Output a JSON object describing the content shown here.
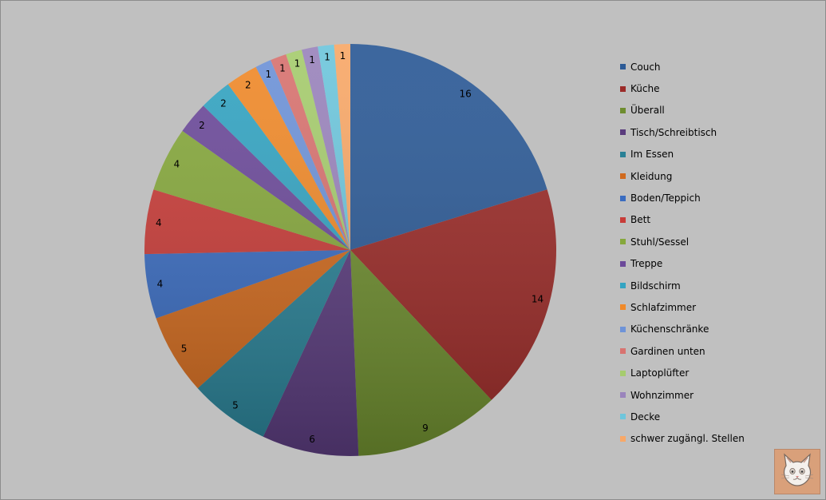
{
  "chart_data": {
    "type": "pie",
    "title": "",
    "categories": [
      "Couch",
      "Küche",
      "Überall",
      "Tisch/Schreibtisch",
      "Im Essen",
      "Kleidung",
      "Boden/Teppich",
      "Bett",
      "Stuhl/Sessel",
      "Treppe",
      "Bildschirm",
      "Schlafzimmer",
      "Küchenschränke",
      "Gardinen unten",
      "Laptoplüfter",
      "Wohnzimmer",
      "Decke",
      "schwer zugängl. Stellen"
    ],
    "values": [
      16,
      14,
      9,
      6,
      5,
      5,
      4,
      4,
      4,
      2,
      2,
      2,
      1,
      1,
      1,
      1,
      1,
      1
    ],
    "value_labels": [
      "16",
      "14",
      "9",
      "6",
      "5",
      "5",
      "4",
      "4",
      "4",
      "2",
      "2",
      "2",
      "1",
      "1",
      "1",
      "1",
      "1",
      "1"
    ],
    "colors": [
      "#2c5a96",
      "#9b2b28",
      "#6e8d2f",
      "#5a3c7d",
      "#2a8196",
      "#d06a1e",
      "#3a6cc0",
      "#c83c38",
      "#86a83c",
      "#6c4a9a",
      "#34a4c2",
      "#f08a2a",
      "#6e93d8",
      "#d87370",
      "#a6cc6e",
      "#9a84bc",
      "#6ec6dc",
      "#f8a868"
    ],
    "start_angle_deg": 0,
    "direction": "clockwise",
    "legend_position": "right",
    "background_color": "#c0c0c0"
  },
  "logo": {
    "name": "cat-face-icon"
  }
}
